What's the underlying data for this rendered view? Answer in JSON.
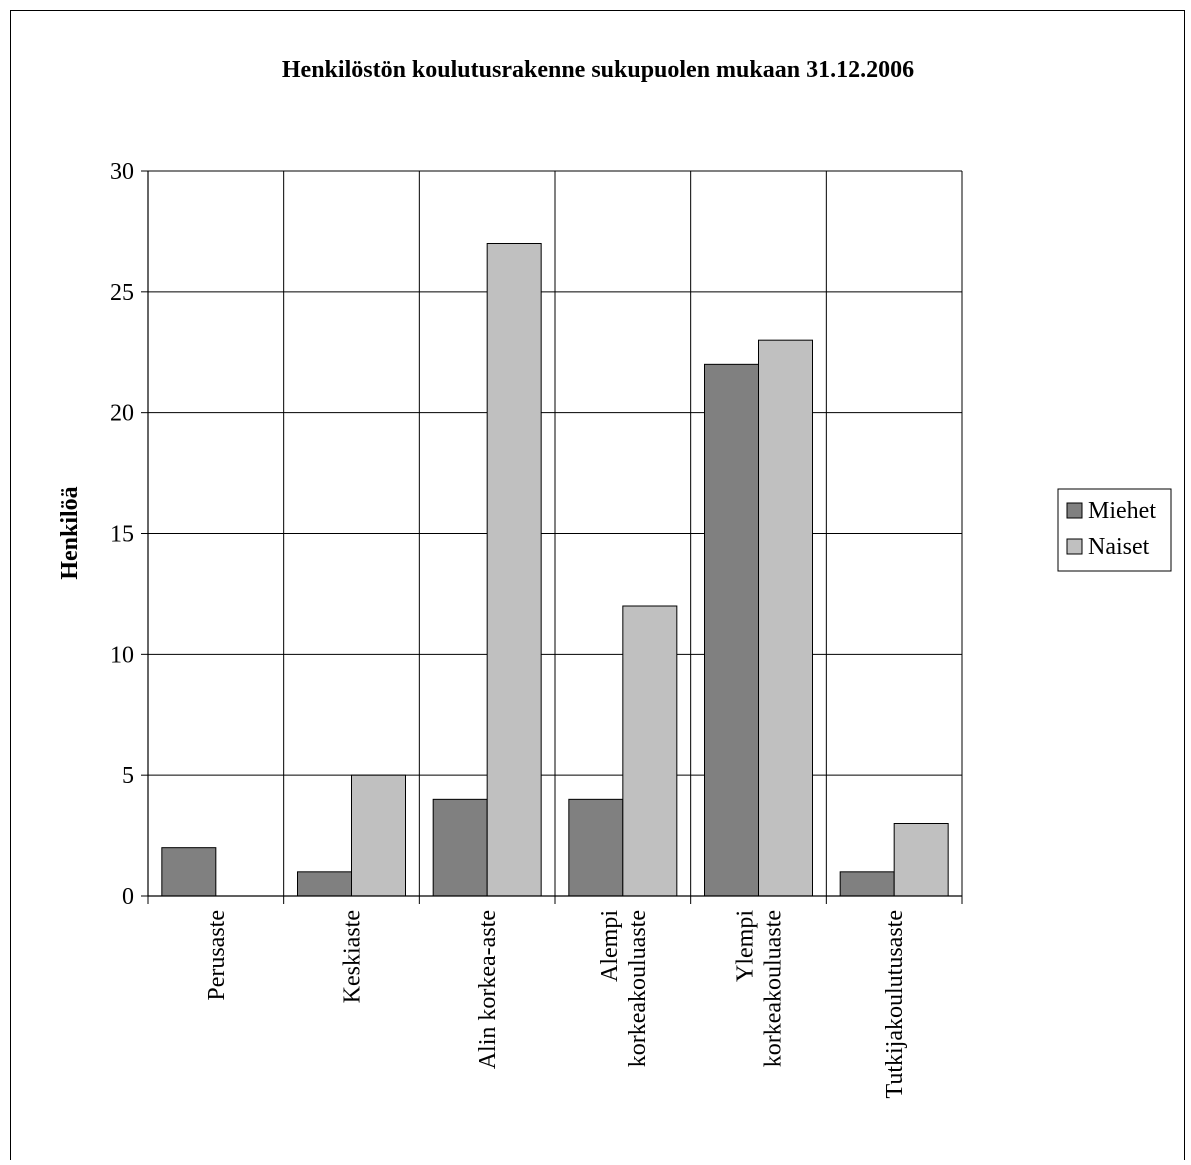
{
  "chart_data": {
    "type": "bar",
    "title": "Henkilöstön koulutusrakenne sukupuolen mukaan 31.12.2006",
    "xlabel": "",
    "ylabel": "Henkilöä",
    "ylim": [
      0,
      30
    ],
    "yticks": [
      0,
      5,
      10,
      15,
      20,
      25,
      30
    ],
    "grid": true,
    "legend_position": "right",
    "categories": [
      [
        "Perusaste"
      ],
      [
        "Keskiaste"
      ],
      [
        "Alin korkea-aste"
      ],
      [
        "Alempi",
        "korkeakouluaste"
      ],
      [
        "Ylempi",
        "korkeakouluaste"
      ],
      [
        "Tutkijakoulutusaste"
      ]
    ],
    "series": [
      {
        "name": "Miehet",
        "color": "#808080",
        "values": [
          2,
          1,
          4,
          4,
          22,
          1
        ]
      },
      {
        "name": "Naiset",
        "color": "#c0c0c0",
        "values": [
          0,
          5,
          27,
          12,
          23,
          3
        ]
      }
    ]
  }
}
